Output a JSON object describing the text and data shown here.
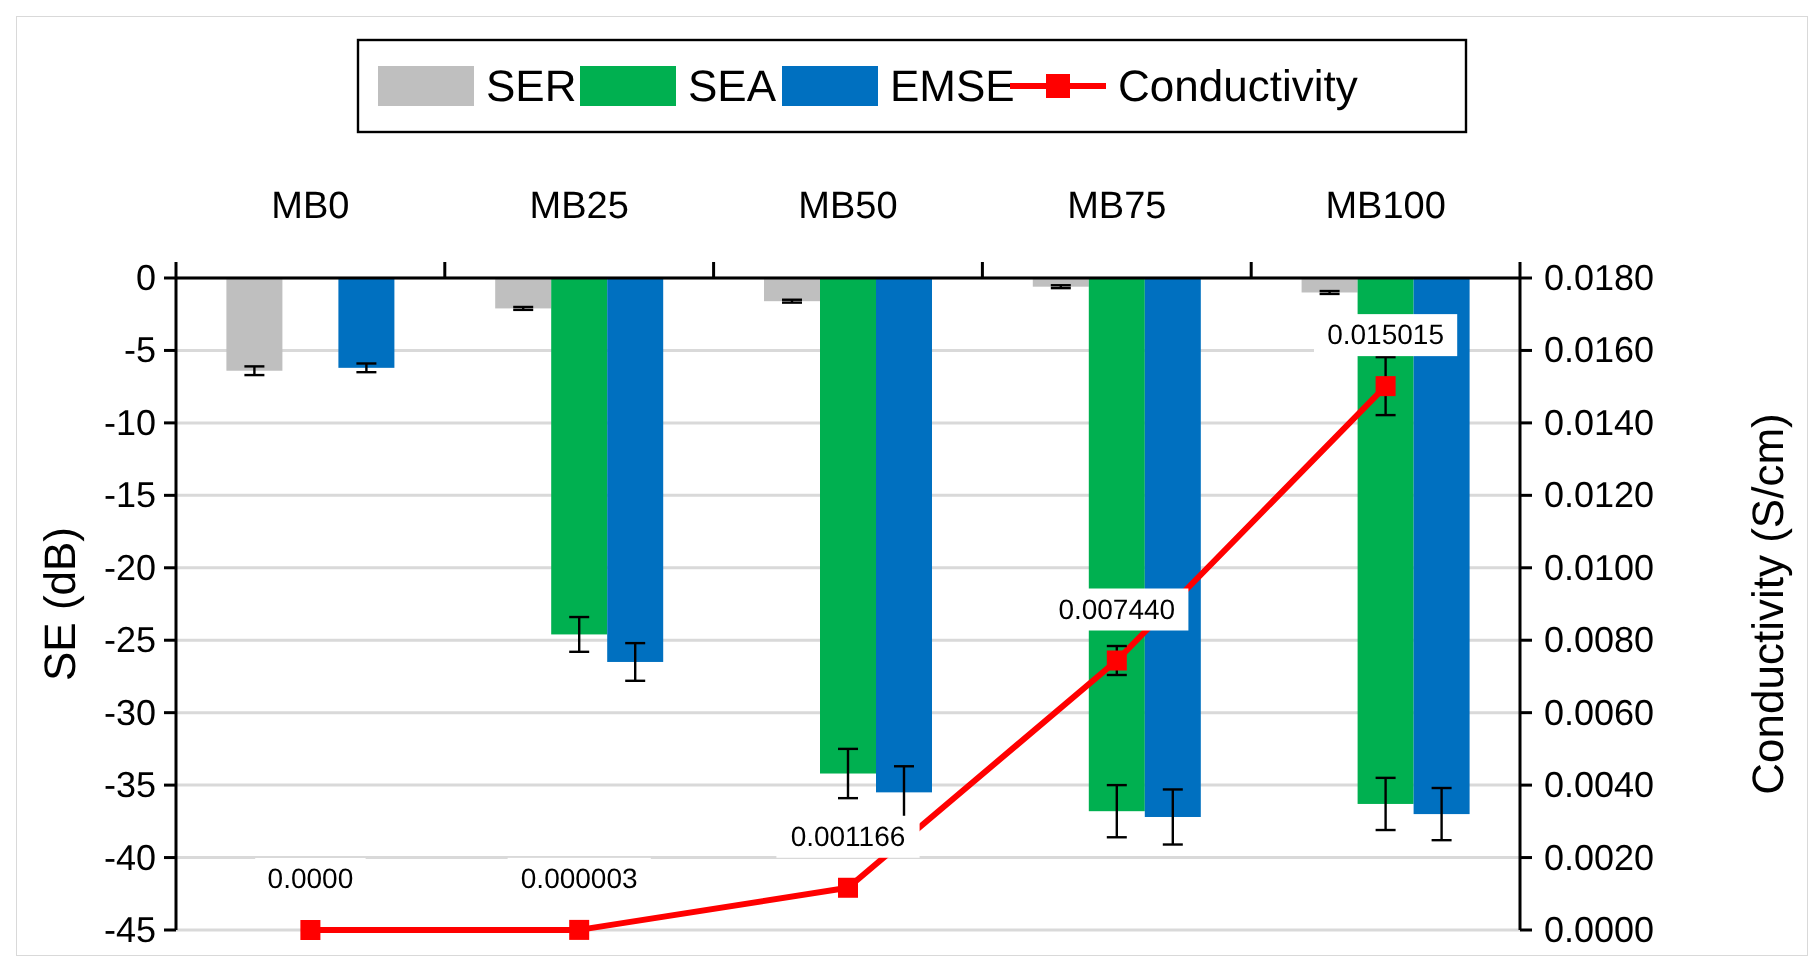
{
  "chart_data": {
    "type": "bar",
    "categories": [
      "MB0",
      "MB25",
      "MB50",
      "MB75",
      "MB100"
    ],
    "ylabel": "SE (dB)",
    "y2label": "Conductivity (S/cm)",
    "ylim": [
      -45,
      0
    ],
    "yticks": [
      0,
      -5,
      -10,
      -15,
      -20,
      -25,
      -30,
      -35,
      -40,
      -45
    ],
    "y2lim": [
      0,
      0.018
    ],
    "y2ticks": [
      {
        "value": 0,
        "label": "0.0000"
      },
      {
        "value": 0.002,
        "label": "0.0020"
      },
      {
        "value": 0.004,
        "label": "0.0040"
      },
      {
        "value": 0.006,
        "label": "0.0060"
      },
      {
        "value": 0.008,
        "label": "0.0080"
      },
      {
        "value": 0.01,
        "label": "0.0100"
      },
      {
        "value": 0.012,
        "label": "0.0120"
      },
      {
        "value": 0.014,
        "label": "0.0140"
      },
      {
        "value": 0.016,
        "label": "0.0160"
      },
      {
        "value": 0.018,
        "label": "0.0180"
      }
    ],
    "grid": "y",
    "legend": "top",
    "series": [
      {
        "name": "SER",
        "color": "#bfbfbf",
        "values": [
          -6.4,
          -2.1,
          -1.6,
          -0.6,
          -1.0
        ],
        "errors": [
          0.3,
          0.1,
          0.1,
          0.1,
          0.1
        ]
      },
      {
        "name": "SEA",
        "color": "#00b050",
        "values": [
          null,
          -24.6,
          -34.2,
          -36.8,
          -36.3
        ],
        "errors": [
          null,
          1.2,
          1.7,
          1.8,
          1.8
        ]
      },
      {
        "name": "EMSE",
        "color": "#0070c0",
        "values": [
          -6.2,
          -26.5,
          -35.5,
          -37.2,
          -37.0
        ],
        "errors": [
          0.3,
          1.3,
          1.8,
          1.9,
          1.8
        ]
      },
      {
        "name": "Conductivity",
        "type": "line",
        "axis": "y2",
        "color": "#ff0000",
        "marker": "square",
        "values": [
          0,
          3e-06,
          0.001166,
          0.00744,
          0.015015
        ],
        "errors": [
          null,
          null,
          null,
          0.0004,
          0.0008
        ],
        "value_labels": [
          "0.0000",
          "0.000003",
          "0.001166",
          "0.007440",
          "0.015015"
        ]
      }
    ]
  }
}
